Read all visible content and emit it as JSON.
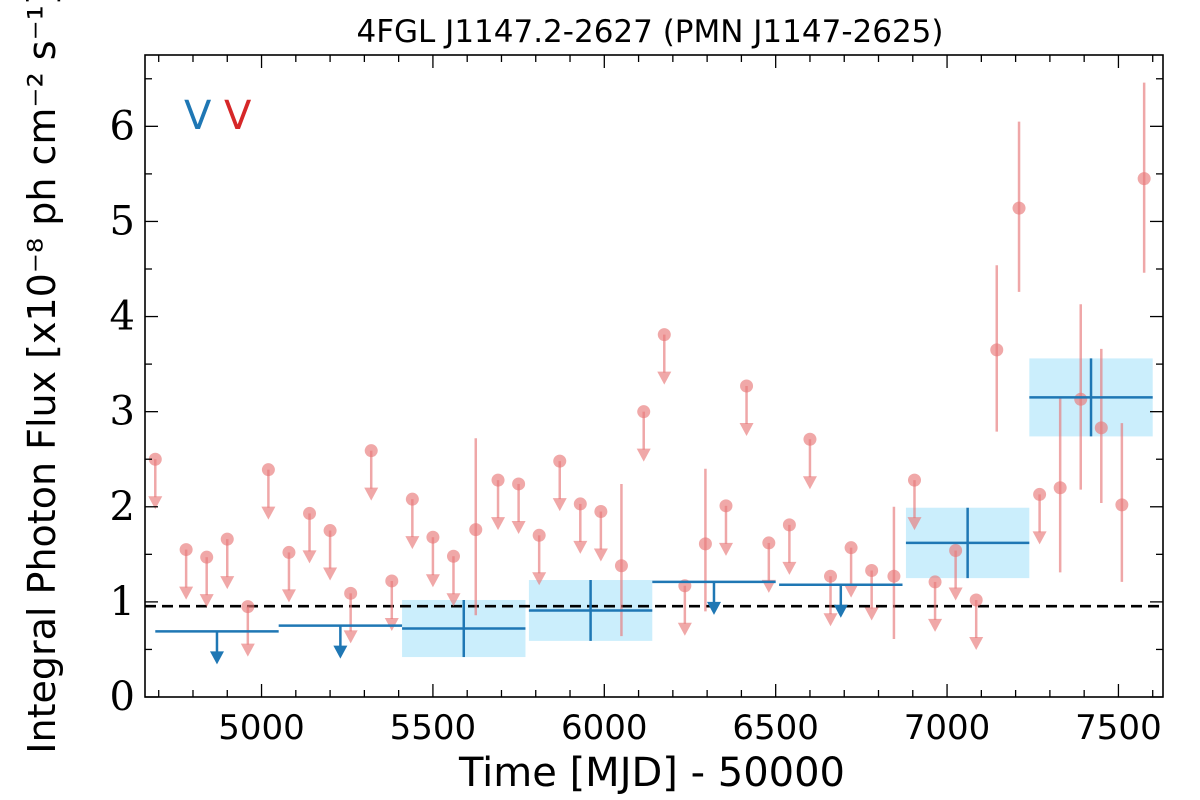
{
  "chart_data": {
    "type": "scatter",
    "title": "4FGL J1147.2-2627 (PMN J1147-2625)",
    "xlabel": "Time [MJD] - 50000",
    "ylabel": "Integral Photon Flux [x10⁻⁸ ph cm⁻² s⁻¹]",
    "xlim": [
      4660,
      7630
    ],
    "ylim": [
      0,
      6.75
    ],
    "xticks": [
      5000,
      5500,
      6000,
      6500,
      7000,
      7500
    ],
    "xtick_labels": [
      "5000",
      "5500",
      "6000",
      "6500",
      "7000",
      "7500"
    ],
    "yticks": [
      0,
      1,
      2,
      3,
      4,
      5,
      6
    ],
    "ytick_labels": [
      "0",
      "1",
      "2",
      "3",
      "4",
      "5",
      "6"
    ],
    "reference_line": 0.955,
    "legend_markers": [
      "V",
      "V"
    ],
    "colors": {
      "blue": "#1f77b4",
      "red": "#e8797a",
      "red_text": "#d62728",
      "band": "#cbeefc"
    },
    "series": [
      {
        "style": "long-bins-blue",
        "points": [
          {
            "x": 4870,
            "xerr": 180,
            "y": 0.69,
            "upper_limit": true
          },
          {
            "x": 5230,
            "xerr": 180,
            "y": 0.75,
            "upper_limit": true
          },
          {
            "x": 5590,
            "xerr": 180,
            "y": 0.72,
            "yerr": 0.3
          },
          {
            "x": 5960,
            "xerr": 180,
            "y": 0.91,
            "yerr": 0.32
          },
          {
            "x": 6320,
            "xerr": 180,
            "y": 1.21,
            "upper_limit": true
          },
          {
            "x": 6690,
            "xerr": 180,
            "y": 1.18,
            "upper_limit": true
          },
          {
            "x": 7060,
            "xerr": 180,
            "y": 1.62,
            "yerr": 0.37
          },
          {
            "x": 7420,
            "xerr": 180,
            "y": 3.15,
            "yerr": 0.41
          }
        ]
      },
      {
        "style": "short-bins-red",
        "points": [
          {
            "x": 4690,
            "y": 2.5,
            "upper_limit": true
          },
          {
            "x": 4780,
            "y": 1.55,
            "upper_limit": true
          },
          {
            "x": 4840,
            "y": 1.47,
            "upper_limit": true
          },
          {
            "x": 4900,
            "y": 1.66,
            "upper_limit": true
          },
          {
            "x": 4960,
            "y": 0.95,
            "upper_limit": true
          },
          {
            "x": 5020,
            "y": 2.39,
            "upper_limit": true
          },
          {
            "x": 5080,
            "y": 1.52,
            "upper_limit": true
          },
          {
            "x": 5140,
            "y": 1.93,
            "upper_limit": true
          },
          {
            "x": 5200,
            "y": 1.75,
            "upper_limit": true
          },
          {
            "x": 5260,
            "y": 1.09,
            "upper_limit": true
          },
          {
            "x": 5320,
            "y": 2.59,
            "upper_limit": true
          },
          {
            "x": 5380,
            "y": 1.22,
            "upper_limit": true
          },
          {
            "x": 5440,
            "y": 2.08,
            "upper_limit": true
          },
          {
            "x": 5500,
            "y": 1.68,
            "upper_limit": true
          },
          {
            "x": 5560,
            "y": 1.48,
            "upper_limit": true
          },
          {
            "x": 5625,
            "y": 1.76,
            "yerr_low": 0.9,
            "yerr_high": 0.96
          },
          {
            "x": 5690,
            "y": 2.28,
            "upper_limit": true
          },
          {
            "x": 5750,
            "y": 2.24,
            "upper_limit": true
          },
          {
            "x": 5810,
            "y": 1.7,
            "upper_limit": true
          },
          {
            "x": 5870,
            "y": 2.48,
            "upper_limit": true
          },
          {
            "x": 5930,
            "y": 2.03,
            "upper_limit": true
          },
          {
            "x": 5990,
            "y": 1.95,
            "upper_limit": true
          },
          {
            "x": 6050,
            "y": 1.38,
            "yerr_low": 0.74,
            "yerr_high": 0.86
          },
          {
            "x": 6115,
            "y": 3.0,
            "upper_limit": true
          },
          {
            "x": 6175,
            "y": 3.81,
            "upper_limit": true
          },
          {
            "x": 6235,
            "y": 1.17,
            "upper_limit": true
          },
          {
            "x": 6295,
            "y": 1.61,
            "yerr_low": 0.71,
            "yerr_high": 0.79
          },
          {
            "x": 6355,
            "y": 2.01,
            "upper_limit": true
          },
          {
            "x": 6415,
            "y": 3.27,
            "upper_limit": true
          },
          {
            "x": 6480,
            "y": 1.62,
            "upper_limit": true
          },
          {
            "x": 6540,
            "y": 1.81,
            "upper_limit": true
          },
          {
            "x": 6600,
            "y": 2.71,
            "upper_limit": true
          },
          {
            "x": 6660,
            "y": 1.27,
            "upper_limit": true
          },
          {
            "x": 6720,
            "y": 1.57,
            "upper_limit": true
          },
          {
            "x": 6780,
            "y": 1.33,
            "upper_limit": true
          },
          {
            "x": 6845,
            "y": 1.27,
            "yerr_low": 0.66,
            "yerr_high": 0.73
          },
          {
            "x": 6905,
            "y": 2.28,
            "upper_limit": true
          },
          {
            "x": 6965,
            "y": 1.21,
            "upper_limit": true
          },
          {
            "x": 7025,
            "y": 1.54,
            "upper_limit": true
          },
          {
            "x": 7085,
            "y": 1.02,
            "upper_limit": true
          },
          {
            "x": 7145,
            "y": 3.65,
            "yerr_low": 0.86,
            "yerr_high": 0.89
          },
          {
            "x": 7210,
            "y": 5.14,
            "yerr_low": 0.88,
            "yerr_high": 0.91
          },
          {
            "x": 7270,
            "y": 2.13,
            "upper_limit": true
          },
          {
            "x": 7330,
            "y": 2.2,
            "yerr_low": 0.89,
            "yerr_high": 0.96
          },
          {
            "x": 7390,
            "y": 3.13,
            "yerr_low": 0.95,
            "yerr_high": 1.0
          },
          {
            "x": 7450,
            "y": 2.83,
            "yerr_low": 0.79,
            "yerr_high": 0.83
          },
          {
            "x": 7510,
            "y": 2.02,
            "yerr_low": 0.81,
            "yerr_high": 0.86
          },
          {
            "x": 7575,
            "y": 5.45,
            "yerr_low": 0.99,
            "yerr_high": 1.01
          }
        ]
      }
    ]
  }
}
